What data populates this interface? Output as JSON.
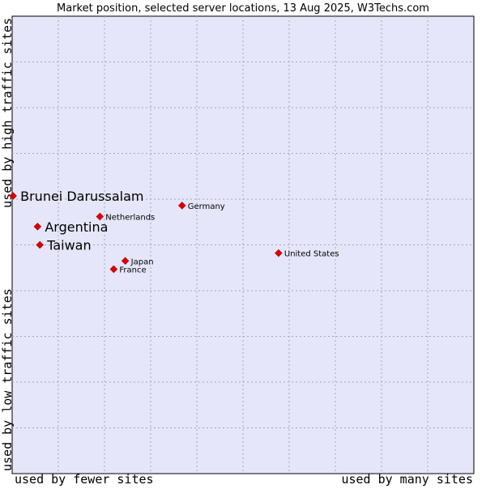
{
  "chart_data": {
    "type": "scatter",
    "title": "Market position, selected server locations, 13 Aug 2025, W3Techs.com",
    "xlabel_left": "used by fewer sites",
    "xlabel_right": "used by many sites",
    "ylabel_top": "used by high traffic sites",
    "ylabel_bottom": "used by low traffic sites",
    "xlim": [
      0,
      100
    ],
    "ylim": [
      0,
      100
    ],
    "grid": true,
    "colors": {
      "plot_background": "#e6e6fa",
      "grid": "#a6a6b8",
      "marker": "#e00000",
      "text": "#000000"
    },
    "points": [
      {
        "label": "Brunei Darussalam",
        "x": 0.2,
        "y": 60.7,
        "emphasis": true
      },
      {
        "label": "Argentina",
        "x": 5.5,
        "y": 54.0,
        "emphasis": true
      },
      {
        "label": "Taiwan",
        "x": 6.0,
        "y": 50.0,
        "emphasis": true
      },
      {
        "label": "Netherlands",
        "x": 19.0,
        "y": 56.2,
        "emphasis": false
      },
      {
        "label": "Germany",
        "x": 36.8,
        "y": 58.6,
        "emphasis": false
      },
      {
        "label": "Japan",
        "x": 24.5,
        "y": 46.5,
        "emphasis": false
      },
      {
        "label": "France",
        "x": 22.0,
        "y": 44.7,
        "emphasis": false
      },
      {
        "label": "United States",
        "x": 57.7,
        "y": 48.2,
        "emphasis": false
      }
    ]
  }
}
